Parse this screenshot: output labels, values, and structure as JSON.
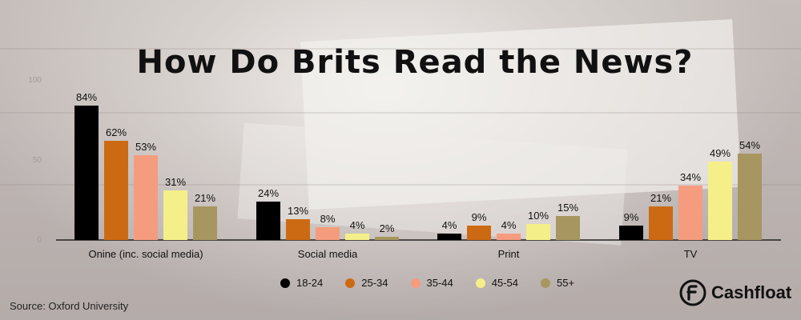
{
  "chart_data": {
    "type": "bar",
    "title": "How Do Brits Read the News?",
    "categories": [
      "Onine (inc. social media)",
      "Social media",
      "Print",
      "TV"
    ],
    "series": [
      {
        "name": "18-24",
        "color": "#000000",
        "values": [
          84,
          24,
          4,
          9
        ]
      },
      {
        "name": "25-34",
        "color": "#cc6a14",
        "values": [
          62,
          13,
          9,
          21
        ]
      },
      {
        "name": "35-44",
        "color": "#f59c7e",
        "values": [
          53,
          8,
          4,
          34
        ]
      },
      {
        "name": "45-54",
        "color": "#f5ef8a",
        "values": [
          31,
          4,
          10,
          49
        ]
      },
      {
        "name": "55+",
        "color": "#a7965f",
        "values": [
          21,
          2,
          15,
          54
        ]
      }
    ],
    "value_suffix": "%",
    "ylim": [
      0,
      100
    ],
    "yticks": [
      "0",
      "50",
      "100"
    ],
    "legend_position": "bottom"
  },
  "footer": {
    "source": "Source: Oxford University",
    "brand": "Cashfloat"
  }
}
